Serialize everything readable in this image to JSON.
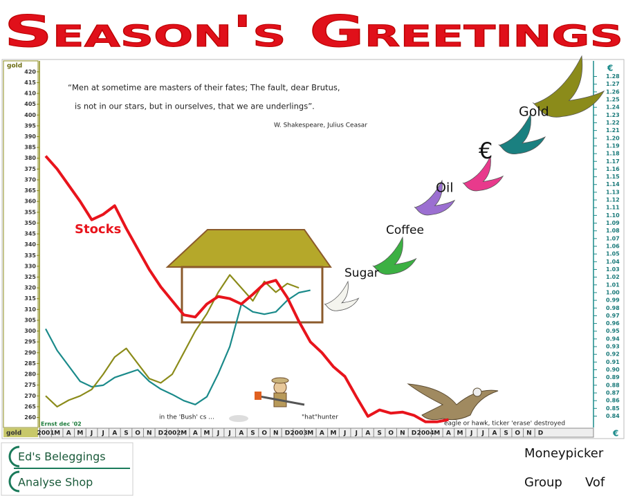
{
  "title": "Season's Greetings",
  "chart_data": {
    "type": "line",
    "y_label": "gold",
    "y2_label": "€",
    "quote": [
      "“Men at sometime are masters of their fates; The fault, dear Brutus,",
      "is not in our stars, but in ourselves, that we are underlings”.",
      "W. Shakespeare, Julius Ceasar"
    ],
    "bird_labels": [
      "Sugar",
      "Coffee",
      "Oil",
      "€",
      "Gold"
    ],
    "annotations": [
      "Ernst dec '02",
      "in the 'Bush' cs ...",
      "\"hat\"hunter",
      "eagle or hawk, ticker 'erase' destroyed"
    ],
    "categories": [
      "2001",
      "M",
      "A",
      "M",
      "J",
      "J",
      "A",
      "S",
      "O",
      "N",
      "D",
      "2002",
      "M",
      "A",
      "M",
      "J",
      "J",
      "A",
      "S",
      "O",
      "N",
      "D",
      "2003",
      "M",
      "A",
      "M",
      "J",
      "J",
      "A",
      "S",
      "O",
      "N",
      "D",
      "2004",
      "M",
      "A",
      "M",
      "J",
      "J",
      "A",
      "S",
      "O",
      "N",
      "D"
    ],
    "series": [
      {
        "name": "Stocks",
        "color": "#e8141c",
        "values": [
          381,
          375,
          367.5,
          360,
          351.5,
          354,
          358,
          347.5,
          338,
          328.5,
          320.5,
          314,
          307.5,
          306.5,
          312.5,
          316,
          315,
          312.5,
          317,
          322,
          323.5,
          315.5,
          304.5,
          295,
          290,
          283.5,
          279,
          269.5,
          260.5,
          263.5,
          262,
          262.5,
          261,
          258,
          258,
          259,
          null,
          null,
          null,
          null,
          null,
          null,
          null,
          null
        ]
      },
      {
        "color": "#8b8b1a",
        "values": [
          270,
          265,
          268,
          270,
          273,
          280,
          288,
          292,
          285,
          278,
          276,
          280,
          290,
          300,
          308,
          318,
          326,
          320,
          314,
          323,
          318,
          322,
          320,
          null,
          null,
          null,
          null,
          null,
          null,
          null,
          null,
          null,
          null,
          null,
          null,
          null,
          null,
          null,
          null,
          null,
          null,
          null,
          null,
          null
        ]
      },
      {
        "color": "#1a8a8a",
        "axis": "y2",
        "values": [
          0.953,
          0.925,
          0.905,
          0.885,
          0.878,
          0.88,
          0.89,
          0.895,
          0.9,
          0.885,
          0.875,
          0.868,
          0.86,
          0.855,
          0.865,
          0.895,
          0.93,
          0.985,
          0.975,
          0.972,
          0.975,
          0.99,
          1.0,
          1.003,
          null,
          null,
          null,
          null,
          null,
          null,
          null,
          null,
          null,
          null,
          null,
          null,
          null,
          null,
          null,
          null,
          null,
          null,
          null,
          null
        ]
      }
    ],
    "ylim": [
      256,
      422.5
    ],
    "yticks": [
      260,
      265,
      270,
      275,
      280,
      285,
      290,
      295,
      300,
      305,
      310,
      315,
      320,
      325,
      330,
      335,
      340,
      345,
      350,
      355,
      360,
      365,
      370,
      375,
      380,
      385,
      390,
      395,
      400,
      405,
      410,
      415,
      420
    ],
    "y2lim": [
      0.827,
      1.293
    ],
    "y2ticks": [
      0.84,
      0.85,
      0.86,
      0.87,
      0.88,
      0.89,
      {
        "value": 0.9,
        "label": "0.90"
      },
      0.91,
      0.92,
      0.93,
      0.94,
      0.95,
      0.96,
      0.97,
      0.98,
      0.99,
      {
        "value": 1,
        "label": "1.00"
      },
      1.01,
      1.02,
      1.03,
      1.04,
      1.05,
      1.06,
      1.07,
      1.08,
      1.09,
      {
        "value": 1.1,
        "label": "1.10"
      },
      1.11,
      1.12,
      1.13,
      1.14,
      1.15,
      1.16,
      1.17,
      1.18,
      1.19,
      {
        "value": 1.2,
        "label": "1.20"
      },
      1.21,
      1.22,
      1.23,
      1.24,
      1.25,
      1.26,
      1.27,
      1.28
    ]
  },
  "footer": {
    "logo": [
      "Ed's Beleggings",
      "Analyse Shop"
    ],
    "company": [
      "Moneypicker",
      "Group",
      "Vof"
    ]
  }
}
